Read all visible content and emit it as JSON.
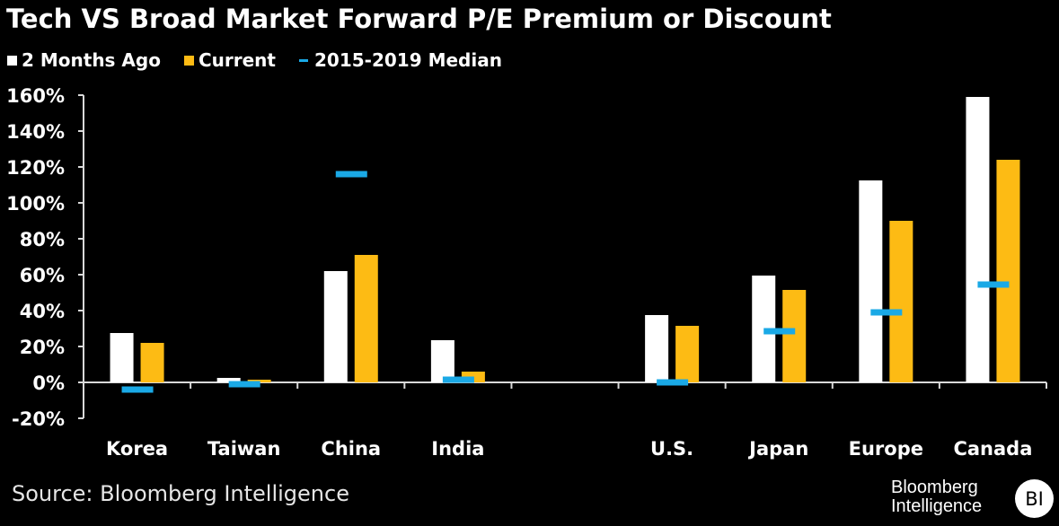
{
  "header": {
    "title": "Tech VS Broad Market Forward P/E Premium or Discount"
  },
  "legend": [
    {
      "label": "2 Months Ago",
      "color": "#ffffff",
      "kind": "square"
    },
    {
      "label": "Current",
      "color": "#fdbb14",
      "kind": "square"
    },
    {
      "label": "2015-2019 Median",
      "color": "#1aa9e6",
      "kind": "line"
    }
  ],
  "footer": {
    "source": "Source: Bloomberg Intelligence",
    "brand_line1": "Bloomberg",
    "brand_line2": "Intelligence",
    "logo": "BI"
  },
  "chart_data": {
    "type": "bar",
    "title": "Tech VS Broad Market Forward P/E Premium or Discount",
    "xlabel": "",
    "ylabel": "",
    "categories": [
      "Korea",
      "Taiwan",
      "China",
      "India",
      "",
      "U.S.",
      "Japan",
      "Europe",
      "Canada"
    ],
    "series": [
      {
        "name": "2 Months Ago",
        "type": "bar",
        "color": "#ffffff",
        "values": [
          27.5,
          2.5,
          62,
          23.5,
          null,
          37.5,
          59.5,
          112.5,
          159
        ]
      },
      {
        "name": "Current",
        "type": "bar",
        "color": "#fdbb14",
        "values": [
          22,
          1.5,
          71,
          6,
          null,
          31.5,
          51.5,
          90,
          124
        ]
      },
      {
        "name": "2015-2019 Median",
        "type": "marker",
        "color": "#1aa9e6",
        "values": [
          -4,
          -1,
          116,
          1.5,
          null,
          0,
          28.5,
          39,
          54.5
        ]
      }
    ],
    "ylim": [
      -20,
      160
    ],
    "yticks": [
      -20,
      0,
      20,
      40,
      60,
      80,
      100,
      120,
      140,
      160
    ],
    "ytick_labels": [
      "-20%",
      "0%",
      "20%",
      "40%",
      "60%",
      "80%",
      "100%",
      "120%",
      "140%",
      "160%"
    ],
    "grid": false,
    "legend_position": "top-left"
  }
}
